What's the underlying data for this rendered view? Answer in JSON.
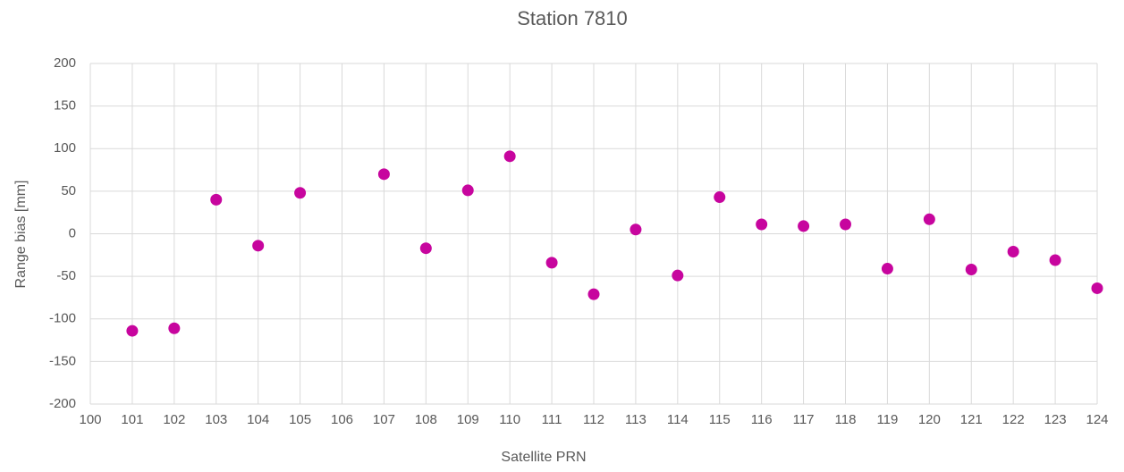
{
  "chart_data": {
    "type": "scatter",
    "title": "Station 7810",
    "x_label": "Satellite PRN",
    "y_label": "Range bias [mm]",
    "series": [
      {
        "name": "Station 7810",
        "color": "#c7059e",
        "x": [
          101,
          102,
          103,
          104,
          105,
          107,
          108,
          109,
          110,
          111,
          112,
          113,
          114,
          115,
          116,
          117,
          118,
          119,
          120,
          121,
          122,
          123,
          124
        ],
        "values": [
          -114,
          -111,
          40,
          -14,
          48,
          70,
          -17,
          51,
          91,
          -34,
          -71,
          5,
          -49,
          43,
          11,
          9,
          11,
          -41,
          17,
          -42,
          -21,
          -31,
          -64
        ]
      }
    ],
    "xlim": [
      100,
      124
    ],
    "xticks": [
      100,
      101,
      102,
      103,
      104,
      105,
      106,
      107,
      108,
      109,
      110,
      111,
      112,
      113,
      114,
      115,
      116,
      117,
      118,
      119,
      120,
      121,
      122,
      123,
      124
    ],
    "ylim": [
      -200,
      200
    ],
    "yticks": [
      -200,
      -150,
      -100,
      -50,
      0,
      50,
      100,
      150,
      200
    ],
    "grid": true
  }
}
